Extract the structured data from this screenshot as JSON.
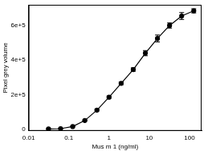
{
  "chart_data": {
    "type": "line",
    "x_label": "Mus m 1 (ng/ml)",
    "y_label": "Pixel grey volume",
    "x": [
      0.03125,
      0.0625,
      0.125,
      0.25,
      0.5,
      1,
      2,
      4,
      8,
      16,
      32,
      64,
      128
    ],
    "values": [
      1000,
      3000,
      15000,
      50000,
      110000,
      185000,
      265000,
      345000,
      440000,
      525000,
      600000,
      655000,
      685000
    ],
    "errors": [
      1000,
      1000,
      2000,
      3000,
      5000,
      6000,
      8000,
      10000,
      15000,
      20000,
      15000,
      20000,
      12000
    ],
    "color": "#000000",
    "marker": "circle",
    "line_style": "solid",
    "log": "x",
    "grid": false,
    "xlim": [
      0.01,
      200
    ],
    "xticks": [
      0.01,
      0.1,
      1,
      10,
      100
    ],
    "ylim": [
      -10000,
      720000
    ],
    "yticks": [
      0,
      {
        "value": 200000,
        "label": "2e+5"
      },
      {
        "value": 400000,
        "label": "4e+5"
      },
      {
        "value": 600000,
        "label": "6e+5"
      }
    ]
  }
}
